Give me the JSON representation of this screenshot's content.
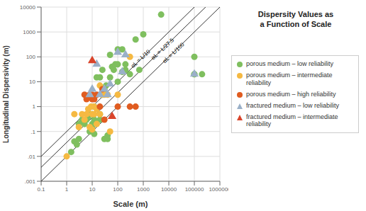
{
  "chart_data": {
    "type": "scatter",
    "title": "Dispersity Values as\na Function of Scale",
    "x_label": "Scale (m)",
    "y_label": "Longitudinal Dispersivity (m)",
    "log": true,
    "grid": true,
    "xlim": [
      0.1,
      1000000
    ],
    "ylim": [
      0.001,
      10000
    ],
    "xticks": [
      0.1,
      1,
      10,
      100,
      1000,
      10000,
      100000,
      1000000
    ],
    "yticks": [
      {
        "value": 0.001,
        "label": ".001"
      },
      {
        "value": 0.01,
        "label": ".01"
      },
      {
        "value": 0.1,
        "label": ".1"
      },
      1,
      10,
      100,
      1000,
      10000
    ],
    "series": [
      {
        "name": "porous medium – low reliability",
        "marker": "circle",
        "color": "#7fbf5f",
        "x": [
          1.5,
          2,
          2.5,
          3,
          3,
          4,
          5,
          6,
          7,
          8,
          8,
          9,
          10,
          10,
          10,
          12,
          12,
          12,
          15,
          15,
          20,
          20,
          20,
          25,
          25,
          30,
          30,
          35,
          40,
          40,
          50,
          50,
          60,
          70,
          80,
          100,
          100,
          100,
          150,
          150,
          200,
          200,
          300,
          500,
          700,
          1000,
          5000,
          100000,
          100000,
          100000,
          200000
        ],
        "values": [
          0.015,
          0.04,
          0.03,
          0.05,
          0.2,
          0.3,
          0.2,
          0.3,
          0.4,
          0.5,
          0.1,
          0.15,
          0.15,
          0.5,
          0.2,
          0.3,
          1.0,
          0.08,
          15,
          0.25,
          15,
          0.5,
          0.3,
          3,
          30,
          5,
          0.05,
          7,
          0.05,
          0.07,
          120,
          15,
          40,
          30,
          50,
          10,
          50,
          200,
          200,
          25,
          50,
          30,
          20,
          500,
          30,
          800,
          5000,
          20,
          20,
          100,
          20
        ]
      },
      {
        "name": "porous medium – intermediate reliability",
        "marker": "circle",
        "color": "#f5b942",
        "x": [
          1,
          2,
          3,
          4,
          5,
          6,
          7,
          8,
          9,
          10,
          10,
          12,
          12,
          15,
          15,
          20,
          20,
          25,
          30,
          40,
          50,
          100,
          300
        ],
        "values": [
          0.01,
          0.5,
          0.15,
          0.5,
          0.3,
          0.5,
          0.8,
          0.15,
          1.0,
          0.12,
          0.5,
          0.5,
          1.0,
          0.2,
          0.8,
          7,
          0.5,
          3,
          3,
          3,
          0.1,
          3,
          100
        ]
      },
      {
        "name": "porous medium – high reliability",
        "marker": "circle",
        "color": "#e05c20",
        "x": [
          5,
          6,
          8,
          10,
          10,
          12,
          15,
          20,
          25,
          30,
          100,
          300,
          500
        ],
        "values": [
          3,
          2,
          3,
          3,
          2,
          2,
          3,
          1,
          5,
          0.3,
          1,
          1,
          1
        ]
      },
      {
        "name": "fractured medium – low reliability",
        "marker": "triangle",
        "color": "#9ab0c8",
        "x": [
          8,
          10,
          15,
          20,
          30,
          40,
          50,
          100,
          150,
          200,
          100000
        ],
        "values": [
          3,
          5,
          50,
          3,
          5,
          3,
          8,
          150,
          25,
          120,
          20
        ]
      },
      {
        "name": "fractured medium – intermediate\nreliability",
        "marker": "triangle",
        "color": "#d9442a",
        "x": [
          10,
          60
        ],
        "values": [
          70,
          0.4
        ]
      }
    ],
    "lines": [
      {
        "color": "#333333",
        "x": [
          0.1,
          1000000
        ],
        "values": [
          0.01,
          100000
        ]
      },
      {
        "color": "#333333",
        "x": [
          0.1,
          1000000
        ],
        "values": [
          0.0036363636363636364,
          36363.63636363636
        ]
      },
      {
        "color": "#333333",
        "x": [
          0.1,
          1000000
        ],
        "values": [
          0.001,
          10000
        ]
      }
    ],
    "annotations": [
      {
        "text": "αL = L/10",
        "x": 400,
        "y": 35
      },
      {
        "text": "αL = L/27.5",
        "x": 2500,
        "y": 75
      },
      {
        "text": "αL = L/100",
        "x": 7000,
        "y": 55
      }
    ]
  }
}
